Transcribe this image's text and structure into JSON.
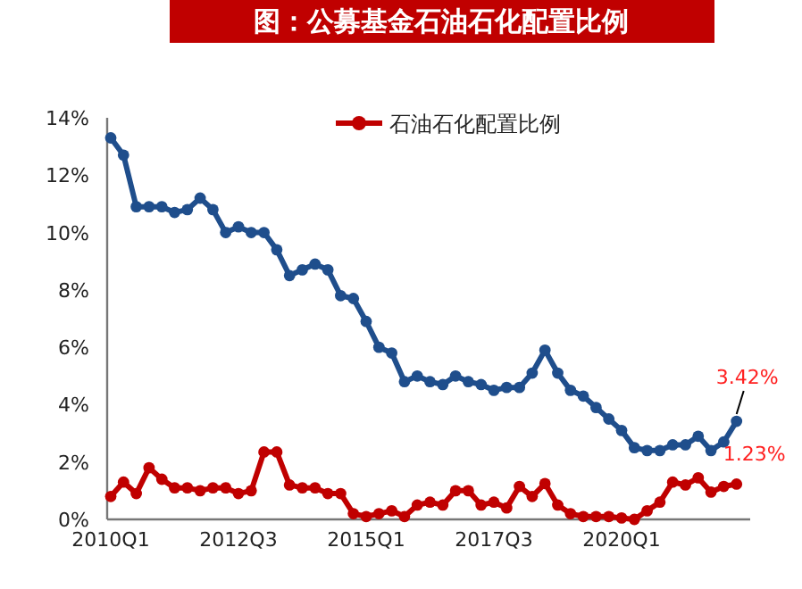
{
  "chart_data": {
    "type": "line",
    "title": "图：公募基金石油石化配置比例",
    "categories": [
      "2010Q1",
      null,
      null,
      null,
      null,
      null,
      null,
      null,
      null,
      null,
      "2012Q3",
      null,
      null,
      null,
      null,
      null,
      null,
      null,
      null,
      null,
      "2015Q1",
      null,
      null,
      null,
      null,
      null,
      null,
      null,
      null,
      null,
      "2017Q3",
      null,
      null,
      null,
      null,
      null,
      null,
      null,
      null,
      null,
      "2020Q1",
      null,
      null,
      null,
      null,
      null,
      null,
      null,
      null,
      null
    ],
    "series": [
      {
        "color": "#1f4e8c",
        "values": [
          13.3,
          12.7,
          10.9,
          10.9,
          10.9,
          10.7,
          10.8,
          11.2,
          10.8,
          10.0,
          10.2,
          10.0,
          10.0,
          9.4,
          8.5,
          8.7,
          8.9,
          8.7,
          7.8,
          7.7,
          6.9,
          6.0,
          5.8,
          4.8,
          5.0,
          4.8,
          4.7,
          5.0,
          4.8,
          4.7,
          4.5,
          4.6,
          4.6,
          5.1,
          5.9,
          5.1,
          4.5,
          4.3,
          3.9,
          3.5,
          3.1,
          2.5,
          2.4,
          2.4,
          2.6,
          2.6,
          2.9,
          2.4,
          2.7,
          3.42
        ]
      },
      {
        "name": "石油石化配置比例",
        "color": "#c00000",
        "values": [
          0.8,
          1.3,
          0.9,
          1.8,
          1.4,
          1.1,
          1.1,
          1.0,
          1.1,
          1.1,
          0.9,
          1.0,
          2.35,
          2.35,
          1.2,
          1.1,
          1.1,
          0.9,
          0.9,
          0.2,
          0.1,
          0.2,
          0.3,
          0.1,
          0.5,
          0.6,
          0.5,
          1.0,
          1.0,
          0.5,
          0.6,
          0.4,
          1.15,
          0.8,
          1.25,
          0.5,
          0.2,
          0.1,
          0.1,
          0.1,
          0.05,
          0.0,
          0.3,
          0.6,
          1.3,
          1.2,
          1.45,
          0.95,
          1.15,
          1.23
        ]
      }
    ],
    "ylim": [
      0,
      14
    ],
    "yticks": [
      {
        "value": 0,
        "label": "0%"
      },
      {
        "value": 2,
        "label": "2%"
      },
      {
        "value": 4,
        "label": "4%"
      },
      {
        "value": 6,
        "label": "6%"
      },
      {
        "value": 8,
        "label": "8%"
      },
      {
        "value": 10,
        "label": "10%"
      },
      {
        "value": 12,
        "label": "12%"
      },
      {
        "value": 14,
        "label": "14%"
      }
    ],
    "marker": "circle",
    "legend": "top",
    "annotations": [
      "3.42%",
      "1.23%"
    ]
  }
}
